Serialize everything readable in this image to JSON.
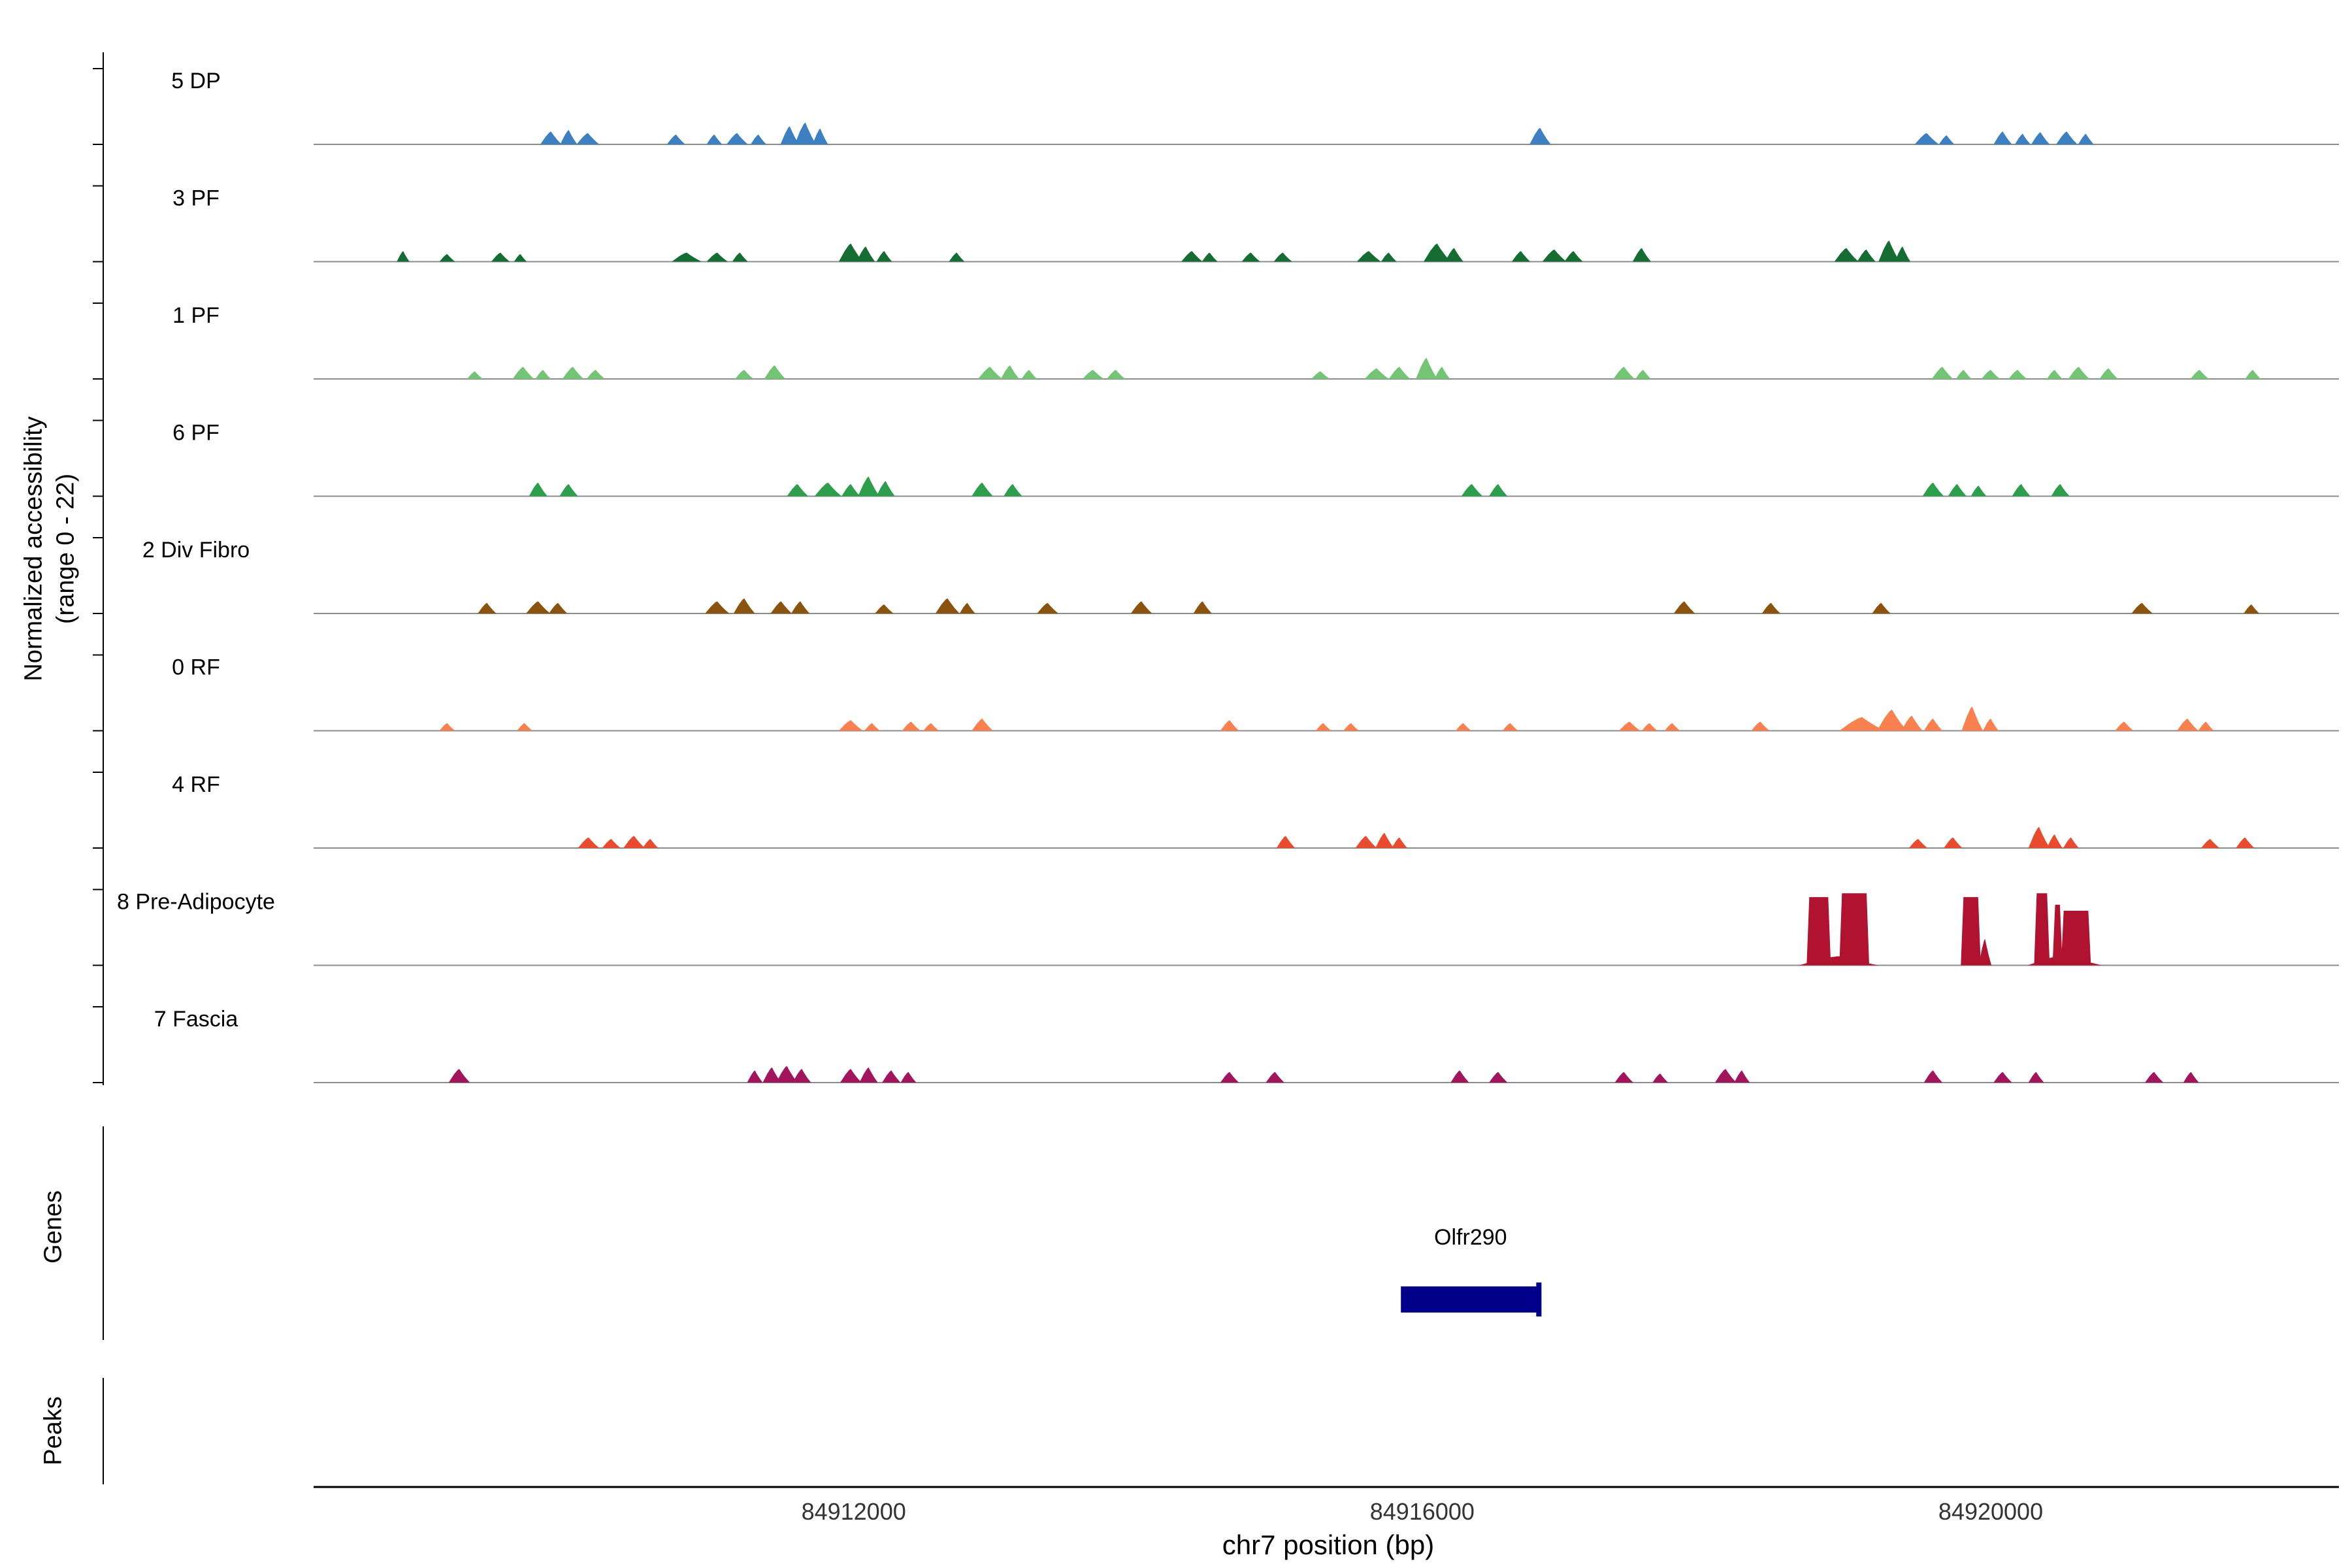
{
  "figure": {
    "ylabel_line1": "Normalized accessibility",
    "ylabel_line2": "(range 0 - 22)",
    "xlabel": "chr7 position (bp)",
    "genes_panel_label": "Genes",
    "peaks_panel_label": "Peaks"
  },
  "chart_data": {
    "type": "area",
    "title": "",
    "xlabel": "chr7 position (bp)",
    "ylabel": "Normalized accessibility (range 0 - 22)",
    "x_range_bp": [
      84908200,
      84922450
    ],
    "x_ticks": [
      84912000,
      84916000,
      84920000
    ],
    "y_range_per_track": [
      0,
      22
    ],
    "legend_position": "none",
    "grid": false,
    "peak_format": [
      "center_bp",
      "width_bp",
      "height_fraction_of_ymax",
      "flat_top_flag"
    ],
    "tracks": [
      {
        "label": "5 DP",
        "color": "#3d80c2",
        "peaks": [
          [
            84909870,
            150,
            0.17
          ],
          [
            84909995,
            120,
            0.19
          ],
          [
            84910130,
            160,
            0.15
          ],
          [
            84910750,
            130,
            0.13
          ],
          [
            84911020,
            110,
            0.13
          ],
          [
            84911180,
            150,
            0.15
          ],
          [
            84911330,
            110,
            0.13
          ],
          [
            84911550,
            130,
            0.24
          ],
          [
            84911660,
            150,
            0.29
          ],
          [
            84911765,
            110,
            0.21
          ],
          [
            84916830,
            150,
            0.22
          ],
          [
            84919550,
            170,
            0.15
          ],
          [
            84919690,
            110,
            0.12
          ],
          [
            84920085,
            130,
            0.17
          ],
          [
            84920225,
            110,
            0.14
          ],
          [
            84920350,
            130,
            0.16
          ],
          [
            84920535,
            150,
            0.17
          ],
          [
            84920670,
            110,
            0.14
          ]
        ]
      },
      {
        "label": "3 PF",
        "color": "#156d33",
        "peaks": [
          [
            84908830,
            90,
            0.14
          ],
          [
            84909140,
            110,
            0.1
          ],
          [
            84909515,
            130,
            0.12
          ],
          [
            84909655,
            90,
            0.1
          ],
          [
            84910825,
            210,
            0.12
          ],
          [
            84911040,
            150,
            0.12
          ],
          [
            84911200,
            110,
            0.12
          ],
          [
            84911980,
            170,
            0.24
          ],
          [
            84912085,
            130,
            0.2
          ],
          [
            84912215,
            110,
            0.14
          ],
          [
            84912725,
            110,
            0.12
          ],
          [
            84914380,
            150,
            0.14
          ],
          [
            84914505,
            110,
            0.12
          ],
          [
            84914795,
            130,
            0.12
          ],
          [
            84915020,
            130,
            0.12
          ],
          [
            84915625,
            170,
            0.14
          ],
          [
            84915765,
            110,
            0.12
          ],
          [
            84916105,
            190,
            0.24
          ],
          [
            84916225,
            130,
            0.18
          ],
          [
            84916695,
            130,
            0.14
          ],
          [
            84916930,
            170,
            0.16
          ],
          [
            84917065,
            130,
            0.14
          ],
          [
            84917545,
            130,
            0.18
          ],
          [
            84918985,
            170,
            0.18
          ],
          [
            84919125,
            130,
            0.16
          ],
          [
            84919285,
            150,
            0.28
          ],
          [
            84919380,
            110,
            0.2
          ]
        ]
      },
      {
        "label": "1 PF",
        "color": "#74c476",
        "peaks": [
          [
            84909335,
            110,
            0.1
          ],
          [
            84909675,
            150,
            0.16
          ],
          [
            84909815,
            110,
            0.12
          ],
          [
            84910025,
            150,
            0.16
          ],
          [
            84910185,
            130,
            0.12
          ],
          [
            84911230,
            130,
            0.12
          ],
          [
            84911445,
            150,
            0.18
          ],
          [
            84912960,
            170,
            0.16
          ],
          [
            84913100,
            130,
            0.18
          ],
          [
            84913235,
            110,
            0.12
          ],
          [
            84913685,
            150,
            0.12
          ],
          [
            84913845,
            130,
            0.12
          ],
          [
            84915285,
            130,
            0.1
          ],
          [
            84915680,
            170,
            0.14
          ],
          [
            84915840,
            150,
            0.16
          ],
          [
            84916030,
            150,
            0.28
          ],
          [
            84916140,
            110,
            0.16
          ],
          [
            84917420,
            150,
            0.16
          ],
          [
            84917555,
            110,
            0.12
          ],
          [
            84919660,
            150,
            0.16
          ],
          [
            84919810,
            110,
            0.12
          ],
          [
            84920000,
            130,
            0.12
          ],
          [
            84920190,
            130,
            0.12
          ],
          [
            84920450,
            110,
            0.12
          ],
          [
            84920620,
            150,
            0.16
          ],
          [
            84920830,
            130,
            0.14
          ],
          [
            84921470,
            130,
            0.12
          ],
          [
            84921845,
            110,
            0.12
          ]
        ]
      },
      {
        "label": "6 PF",
        "color": "#2d9e4c",
        "peaks": [
          [
            84909780,
            130,
            0.18
          ],
          [
            84909995,
            130,
            0.16
          ],
          [
            84911605,
            150,
            0.16
          ],
          [
            84911820,
            190,
            0.18
          ],
          [
            84911980,
            130,
            0.16
          ],
          [
            84912105,
            150,
            0.26
          ],
          [
            84912225,
            130,
            0.2
          ],
          [
            84912905,
            150,
            0.18
          ],
          [
            84913120,
            130,
            0.16
          ],
          [
            84916350,
            150,
            0.16
          ],
          [
            84916535,
            130,
            0.16
          ],
          [
            84919595,
            150,
            0.18
          ],
          [
            84919765,
            130,
            0.16
          ],
          [
            84919915,
            110,
            0.14
          ],
          [
            84920215,
            130,
            0.16
          ],
          [
            84920490,
            130,
            0.16
          ]
        ]
      },
      {
        "label": "2 Div Fibro",
        "color": "#8a540f",
        "peaks": [
          [
            84909420,
            130,
            0.14
          ],
          [
            84909780,
            170,
            0.16
          ],
          [
            84909920,
            130,
            0.14
          ],
          [
            84911040,
            170,
            0.16
          ],
          [
            84911230,
            150,
            0.2
          ],
          [
            84911490,
            150,
            0.16
          ],
          [
            84911625,
            130,
            0.16
          ],
          [
            84912215,
            130,
            0.12
          ],
          [
            84912660,
            170,
            0.2
          ],
          [
            84912800,
            110,
            0.14
          ],
          [
            84913365,
            150,
            0.14
          ],
          [
            84914025,
            150,
            0.16
          ],
          [
            84914455,
            130,
            0.16
          ],
          [
            84917845,
            150,
            0.16
          ],
          [
            84918455,
            130,
            0.14
          ],
          [
            84919230,
            130,
            0.14
          ],
          [
            84921065,
            150,
            0.14
          ],
          [
            84921835,
            110,
            0.12
          ]
        ]
      },
      {
        "label": "0 RF",
        "color": "#f9814f",
        "peaks": [
          [
            84909140,
            110,
            0.1
          ],
          [
            84909685,
            110,
            0.1
          ],
          [
            84911980,
            170,
            0.14
          ],
          [
            84912130,
            110,
            0.1
          ],
          [
            84912405,
            130,
            0.12
          ],
          [
            84912545,
            110,
            0.1
          ],
          [
            84912905,
            150,
            0.16
          ],
          [
            84914645,
            130,
            0.14
          ],
          [
            84915305,
            110,
            0.1
          ],
          [
            84915500,
            110,
            0.1
          ],
          [
            84916290,
            110,
            0.1
          ],
          [
            84916620,
            110,
            0.1
          ],
          [
            84917460,
            150,
            0.12
          ],
          [
            84917600,
            110,
            0.1
          ],
          [
            84917760,
            110,
            0.1
          ],
          [
            84918380,
            130,
            0.12
          ],
          [
            84919095,
            320,
            0.18
          ],
          [
            84919305,
            210,
            0.28
          ],
          [
            84919445,
            150,
            0.2
          ],
          [
            84919595,
            130,
            0.16
          ],
          [
            84919870,
            150,
            0.32
          ],
          [
            84920000,
            110,
            0.16
          ],
          [
            84920940,
            130,
            0.12
          ],
          [
            84921385,
            150,
            0.16
          ],
          [
            84921515,
            110,
            0.12
          ]
        ]
      },
      {
        "label": "4 RF",
        "color": "#e84b2d",
        "peaks": [
          [
            84910135,
            150,
            0.14
          ],
          [
            84910295,
            130,
            0.12
          ],
          [
            84910455,
            150,
            0.16
          ],
          [
            84910570,
            110,
            0.12
          ],
          [
            84915040,
            130,
            0.16
          ],
          [
            84915605,
            150,
            0.16
          ],
          [
            84915735,
            130,
            0.2
          ],
          [
            84915840,
            110,
            0.14
          ],
          [
            84919490,
            130,
            0.12
          ],
          [
            84919735,
            130,
            0.14
          ],
          [
            84920340,
            150,
            0.28
          ],
          [
            84920450,
            110,
            0.18
          ],
          [
            84920565,
            110,
            0.14
          ],
          [
            84921545,
            130,
            0.12
          ],
          [
            84921790,
            130,
            0.14
          ]
        ]
      },
      {
        "label": "8 Pre-Adipocyte",
        "color": "#b11230",
        "peaks": [
          [
            84918930,
            560,
            0.12
          ],
          [
            84918790,
            170,
            0.9,
            1
          ],
          [
            84919040,
            210,
            0.95,
            1
          ],
          [
            84919860,
            140,
            0.9,
            1
          ],
          [
            84919960,
            90,
            0.35
          ],
          [
            84920360,
            110,
            0.95,
            1
          ],
          [
            84920470,
            70,
            0.8,
            1
          ],
          [
            84920600,
            210,
            0.72,
            1
          ],
          [
            84920520,
            520,
            0.14
          ]
        ]
      },
      {
        "label": "7 Fascia",
        "color": "#a2155c",
        "peaks": [
          [
            84909225,
            150,
            0.18
          ],
          [
            84911305,
            110,
            0.16
          ],
          [
            84911425,
            130,
            0.2
          ],
          [
            84911530,
            150,
            0.22
          ],
          [
            84911635,
            130,
            0.18
          ],
          [
            84911980,
            150,
            0.18
          ],
          [
            84912105,
            130,
            0.2
          ],
          [
            84912265,
            130,
            0.16
          ],
          [
            84912385,
            110,
            0.14
          ],
          [
            84914645,
            130,
            0.14
          ],
          [
            84914965,
            130,
            0.14
          ],
          [
            84916265,
            130,
            0.16
          ],
          [
            84916535,
            130,
            0.14
          ],
          [
            84917420,
            130,
            0.14
          ],
          [
            84917675,
            110,
            0.12
          ],
          [
            84918135,
            150,
            0.18
          ],
          [
            84918250,
            110,
            0.16
          ],
          [
            84919595,
            130,
            0.16
          ],
          [
            84920085,
            130,
            0.14
          ],
          [
            84920320,
            110,
            0.14
          ],
          [
            84921150,
            130,
            0.14
          ],
          [
            84921410,
            110,
            0.14
          ]
        ]
      }
    ],
    "genes": [
      {
        "name": "Olfr290",
        "start_bp": 84915850,
        "end_bp": 84916830,
        "color": "#00008b"
      }
    ],
    "peaks_track": []
  }
}
